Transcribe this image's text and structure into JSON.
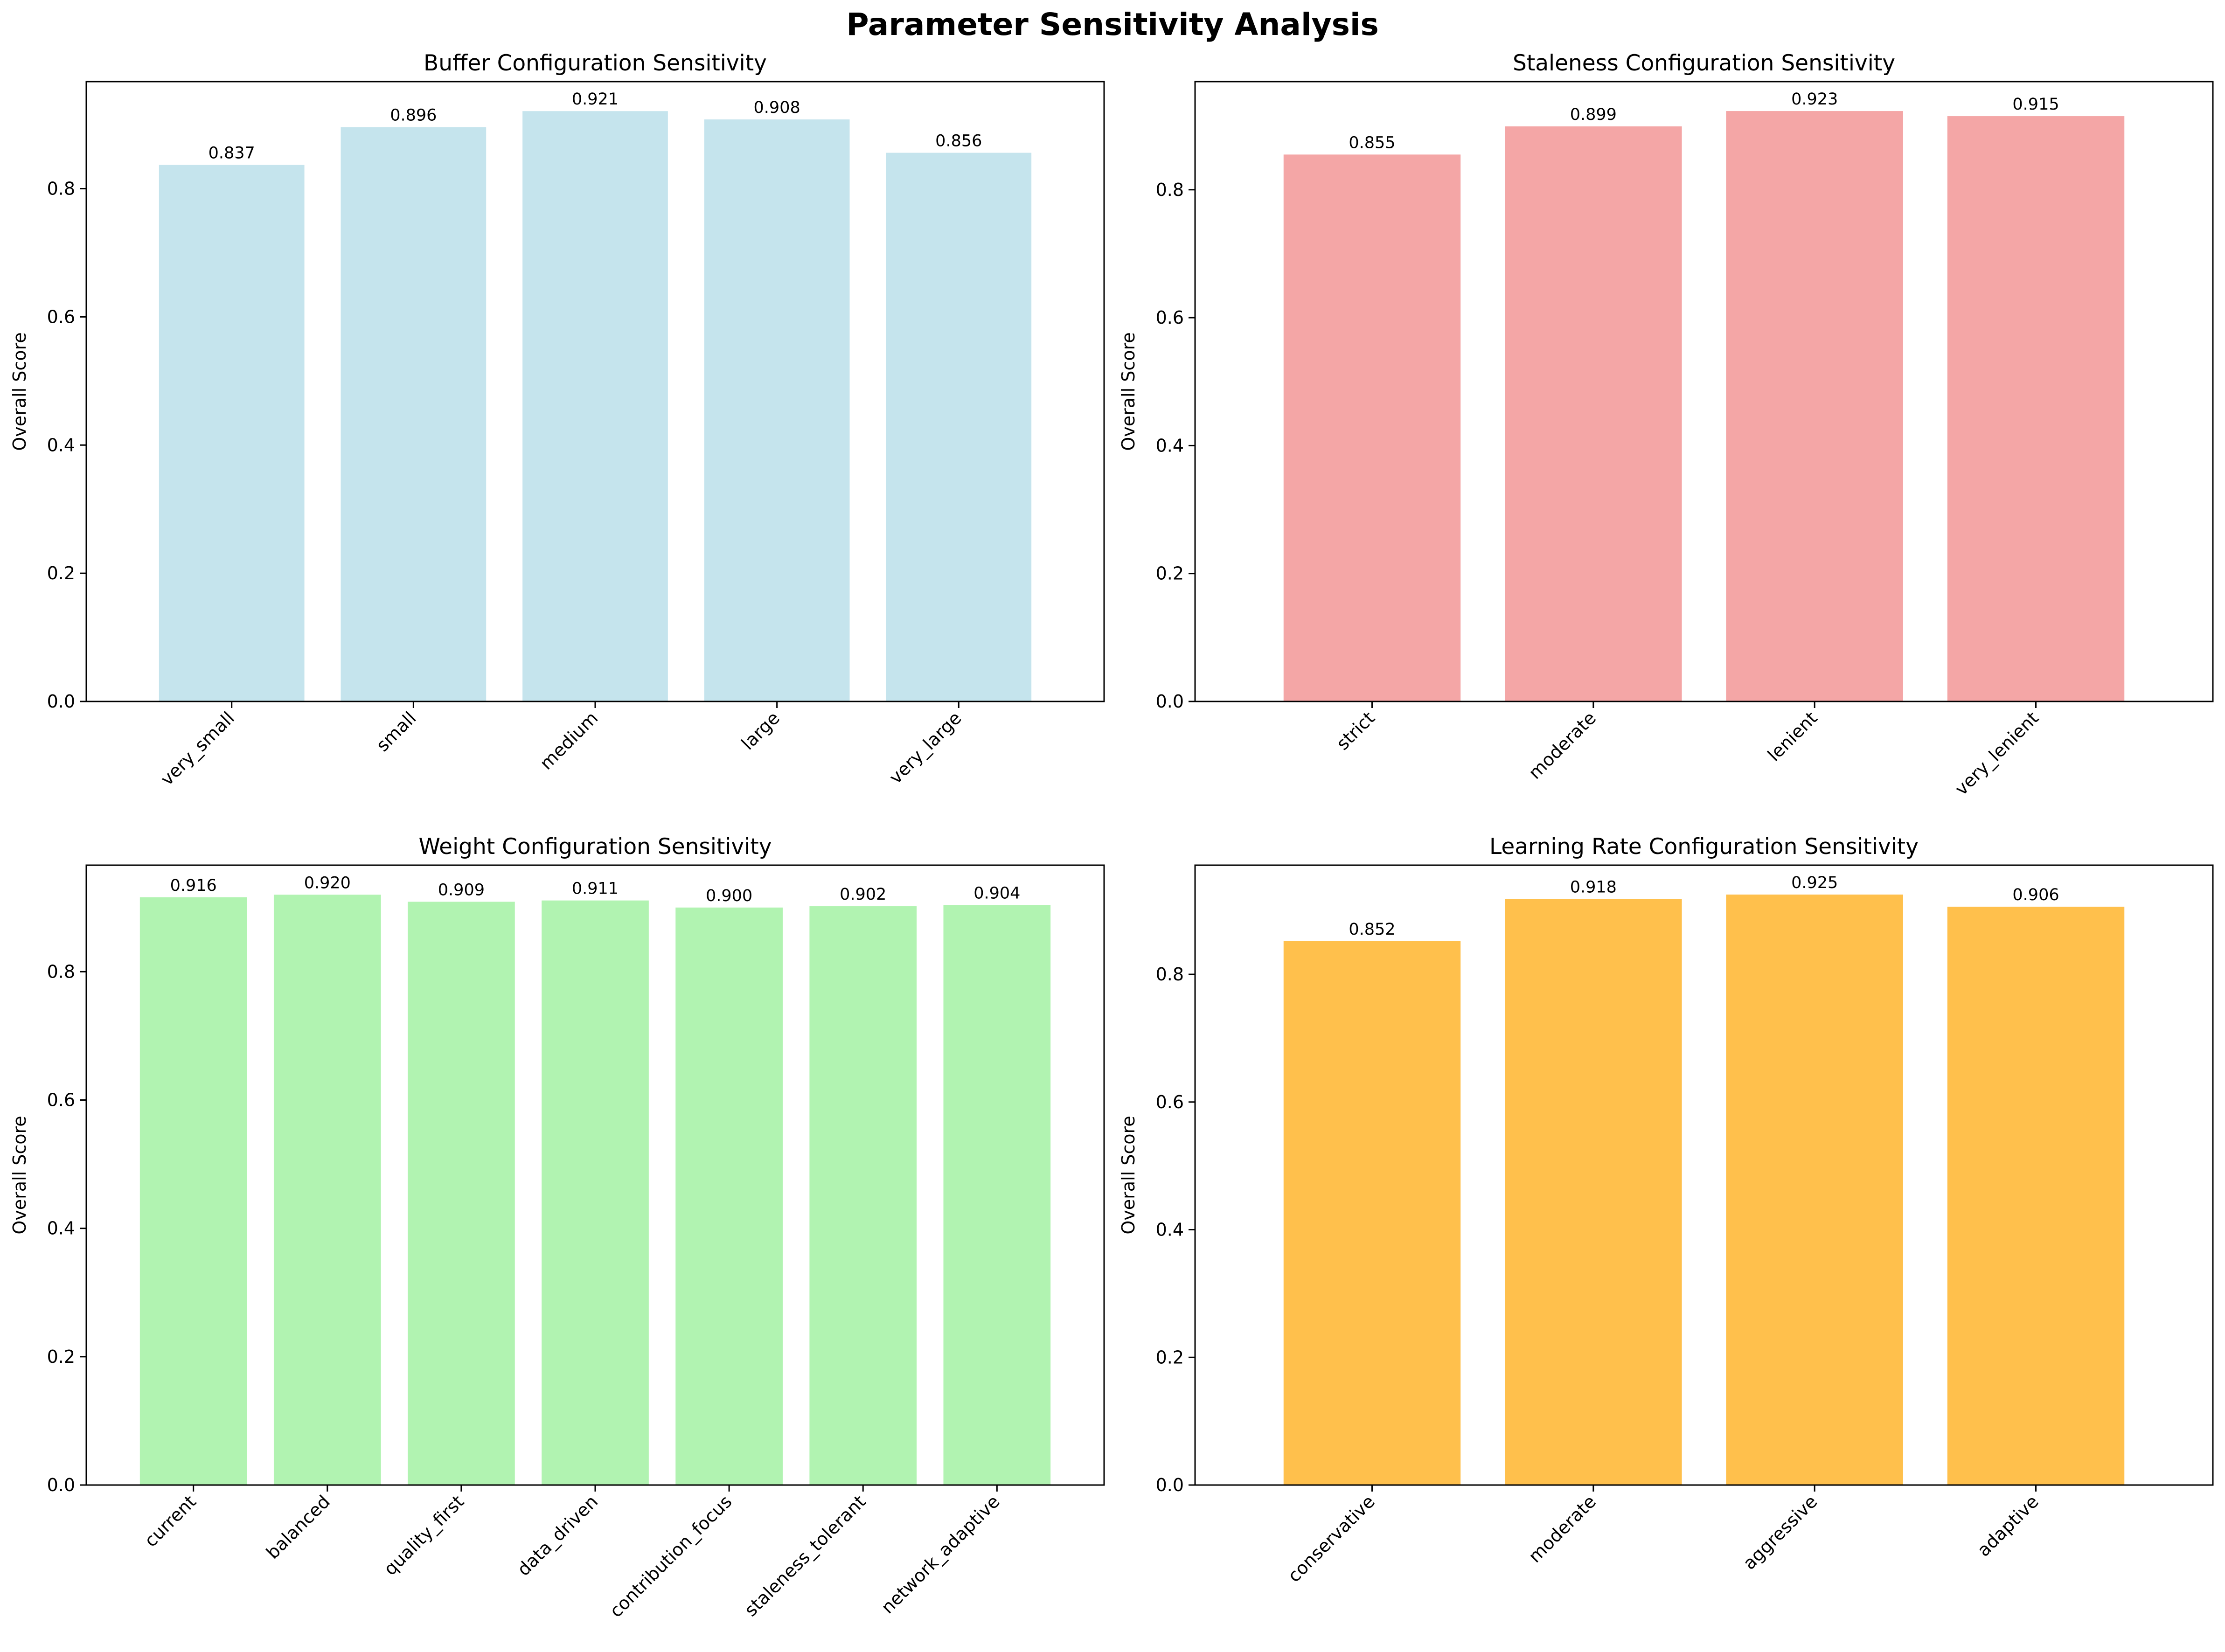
{
  "suptitle": "Parameter Sensitivity Analysis",
  "chart_data": [
    {
      "type": "bar",
      "title": "Buffer Configuration Sensitivity",
      "ylabel": "Overall Score",
      "categories": [
        "very_small",
        "small",
        "medium",
        "large",
        "very_large"
      ],
      "values": [
        0.837,
        0.896,
        0.921,
        0.908,
        0.856
      ],
      "data_labels": [
        "0.837",
        "0.896",
        "0.921",
        "0.908",
        "0.856"
      ],
      "ylim": [
        0,
        0.967
      ],
      "yticks": [
        0.0,
        0.2,
        0.4,
        0.6,
        0.8
      ],
      "ytick_labels": [
        "0.0",
        "0.2",
        "0.4",
        "0.6",
        "0.8"
      ],
      "color": "#add8e6",
      "grid": false
    },
    {
      "type": "bar",
      "title": "Staleness Configuration Sensitivity",
      "ylabel": "Overall Score",
      "categories": [
        "strict",
        "moderate",
        "lenient",
        "very_lenient"
      ],
      "values": [
        0.855,
        0.899,
        0.923,
        0.915
      ],
      "data_labels": [
        "0.855",
        "0.899",
        "0.923",
        "0.915"
      ],
      "ylim": [
        0,
        0.969
      ],
      "yticks": [
        0.0,
        0.2,
        0.4,
        0.6,
        0.8
      ],
      "ytick_labels": [
        "0.0",
        "0.2",
        "0.4",
        "0.6",
        "0.8"
      ],
      "color": "#f08080",
      "grid": false
    },
    {
      "type": "bar",
      "title": "Weight Configuration Sensitivity",
      "ylabel": "Overall Score",
      "categories": [
        "current",
        "balanced",
        "quality_first",
        "data_driven",
        "contribution_focus",
        "staleness_tolerant",
        "network_adaptive"
      ],
      "values": [
        0.916,
        0.92,
        0.909,
        0.911,
        0.9,
        0.902,
        0.904
      ],
      "data_labels": [
        "0.916",
        "0.920",
        "0.909",
        "0.911",
        "0.900",
        "0.902",
        "0.904"
      ],
      "ylim": [
        0,
        0.966
      ],
      "yticks": [
        0.0,
        0.2,
        0.4,
        0.6,
        0.8
      ],
      "ytick_labels": [
        "0.0",
        "0.2",
        "0.4",
        "0.6",
        "0.8"
      ],
      "color": "#90ee90",
      "grid": false
    },
    {
      "type": "bar",
      "title": "Learning Rate Configuration Sensitivity",
      "ylabel": "Overall Score",
      "categories": [
        "conservative",
        "moderate",
        "aggressive",
        "adaptive"
      ],
      "values": [
        0.852,
        0.918,
        0.925,
        0.906
      ],
      "data_labels": [
        "0.852",
        "0.918",
        "0.925",
        "0.906"
      ],
      "ylim": [
        0,
        0.971
      ],
      "yticks": [
        0.0,
        0.2,
        0.4,
        0.6,
        0.8
      ],
      "ytick_labels": [
        "0.0",
        "0.2",
        "0.4",
        "0.6",
        "0.8"
      ],
      "color": "#ffa500",
      "grid": false
    }
  ]
}
